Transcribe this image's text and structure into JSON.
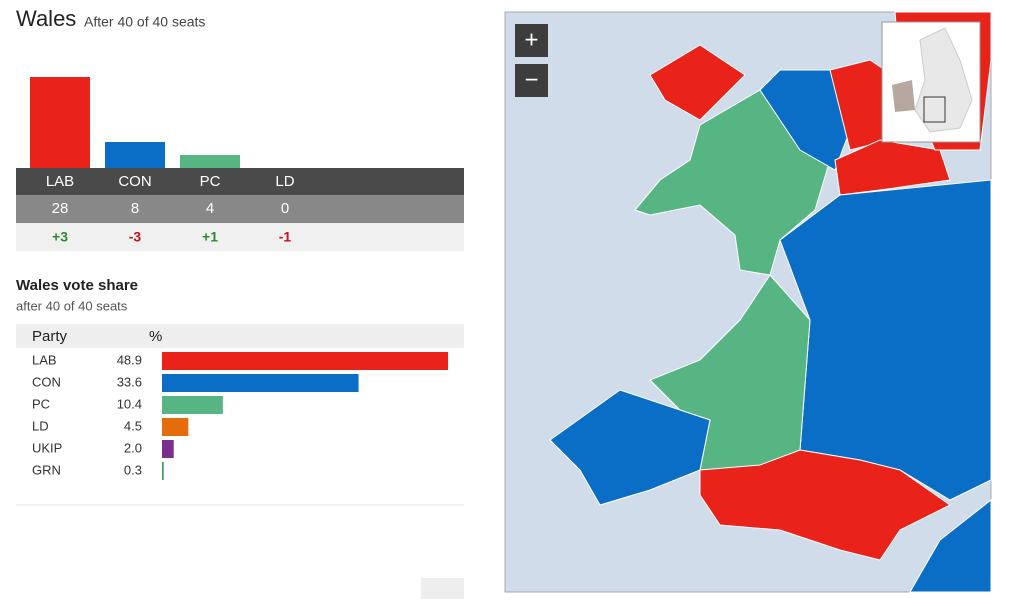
{
  "header": {
    "title": "Wales",
    "subtitle": "After 40 of 40 seats"
  },
  "seats": {
    "parties": [
      "LAB",
      "CON",
      "PC",
      "LD"
    ],
    "colors": [
      "#e9231a",
      "#0a6ec7",
      "#57b584",
      "#f07a1a"
    ],
    "values": [
      28,
      8,
      4,
      0
    ],
    "changes": [
      3,
      -3,
      1,
      -1
    ],
    "change_labels": [
      "+3",
      "-3",
      "+1",
      "-1"
    ]
  },
  "vote_share": {
    "title": "Wales vote share",
    "subtitle": "after 40 of 40 seats",
    "columns": [
      "Party",
      "%"
    ],
    "parties": [
      "LAB",
      "CON",
      "PC",
      "LD",
      "UKIP",
      "GRN"
    ],
    "colors": [
      "#e9231a",
      "#0a6ec7",
      "#57b584",
      "#e46c0a",
      "#7a2e8c",
      "#4a9d5b"
    ],
    "values": [
      48.9,
      33.6,
      10.4,
      4.5,
      2.0,
      0.3
    ],
    "value_labels": [
      "48.9",
      "33.6",
      "10.4",
      "4.5",
      "2.0",
      "0.3"
    ]
  },
  "map": {
    "zoom_in": "+",
    "zoom_out": "−"
  }
}
